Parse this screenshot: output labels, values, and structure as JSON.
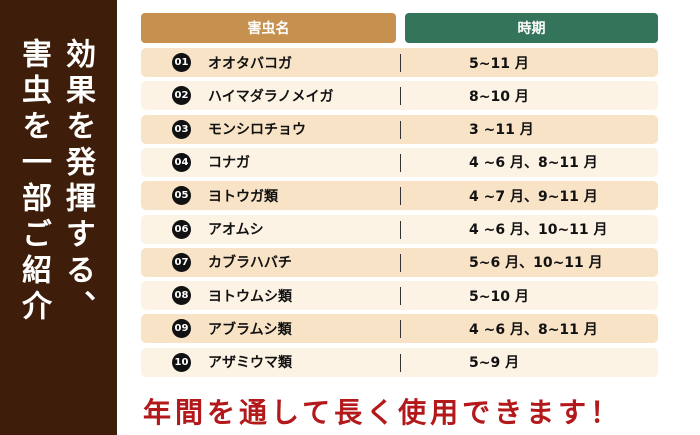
{
  "side": {
    "line1": "効果を発揮する、",
    "line2": "害虫を一部ご紹介"
  },
  "table": {
    "headers": [
      "害虫名",
      "時期"
    ],
    "rows": [
      {
        "num": "01",
        "name": "オオタバコガ",
        "period": "5~11 月"
      },
      {
        "num": "02",
        "name": "ハイマダラノメイガ",
        "period": "8~10 月"
      },
      {
        "num": "03",
        "name": "モンシロチョウ",
        "period": "3 ~11 月"
      },
      {
        "num": "04",
        "name": "コナガ",
        "period": "4 ~6 月、8~11 月"
      },
      {
        "num": "05",
        "name": "ヨトウガ類",
        "period": "4 ~7 月、9~11 月"
      },
      {
        "num": "06",
        "name": "アオムシ",
        "period": "4 ~6 月、10~11 月"
      },
      {
        "num": "07",
        "name": "カブラハバチ",
        "period": "5~6 月、10~11 月"
      },
      {
        "num": "08",
        "name": "ヨトウムシ類",
        "period": "5~10 月"
      },
      {
        "num": "09",
        "name": "アブラムシ類",
        "period": "4 ~6 月、8~11 月"
      },
      {
        "num": "10",
        "name": "アザミウマ類",
        "period": "5~9 月"
      }
    ]
  },
  "footer": "年間を通して長く使用できます！",
  "colors": {
    "side": "#3e1e0a",
    "header_name": "#c6914f",
    "header_period": "#33745a",
    "row_a": "#f8e3c6",
    "row_b": "#fdf3e5",
    "footer": "#b3191b"
  }
}
